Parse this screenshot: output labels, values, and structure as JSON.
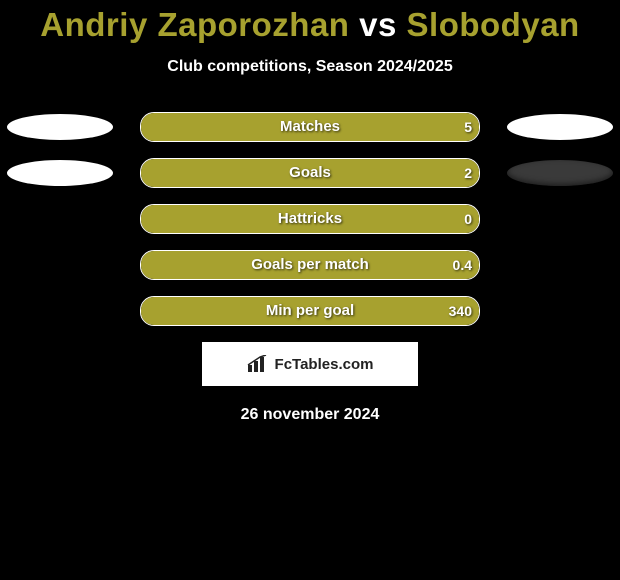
{
  "title": {
    "player1": "Andriy Zaporozhan",
    "vs": "vs",
    "player2": "Slobodyan",
    "p1_color": "#a7a12f",
    "vs_color": "#ffffff",
    "p2_color": "#a7a12f"
  },
  "subtitle": "Club competitions, Season 2024/2025",
  "colors": {
    "bar_fill_left": "#a7a12f",
    "bar_fill_right": "#a7a12f",
    "bar_border": "#ffffff",
    "left_oval": "#ffffff",
    "right_oval_shadow": "#333333",
    "background": "#000000"
  },
  "stats": [
    {
      "label": "Matches",
      "left_val": "",
      "right_val": "5",
      "left_pct": 0,
      "right_pct": 100,
      "show_left_oval": true,
      "show_right_oval": true,
      "left_oval_color": "#ffffff",
      "right_oval_color": "#ffffff"
    },
    {
      "label": "Goals",
      "left_val": "",
      "right_val": "2",
      "left_pct": 0,
      "right_pct": 100,
      "show_left_oval": true,
      "show_right_oval": true,
      "left_oval_color": "#ffffff",
      "right_oval_color": "#3a3a3a"
    },
    {
      "label": "Hattricks",
      "left_val": "",
      "right_val": "0",
      "left_pct": 0,
      "right_pct": 100,
      "show_left_oval": false,
      "show_right_oval": false,
      "left_oval_color": "#ffffff",
      "right_oval_color": "#ffffff"
    },
    {
      "label": "Goals per match",
      "left_val": "",
      "right_val": "0.4",
      "left_pct": 0,
      "right_pct": 100,
      "show_left_oval": false,
      "show_right_oval": false,
      "left_oval_color": "#ffffff",
      "right_oval_color": "#ffffff"
    },
    {
      "label": "Min per goal",
      "left_val": "",
      "right_val": "340",
      "left_pct": 0,
      "right_pct": 100,
      "show_left_oval": false,
      "show_right_oval": false,
      "left_oval_color": "#ffffff",
      "right_oval_color": "#ffffff"
    }
  ],
  "attribution": "FcTables.com",
  "date": "26 november 2024"
}
